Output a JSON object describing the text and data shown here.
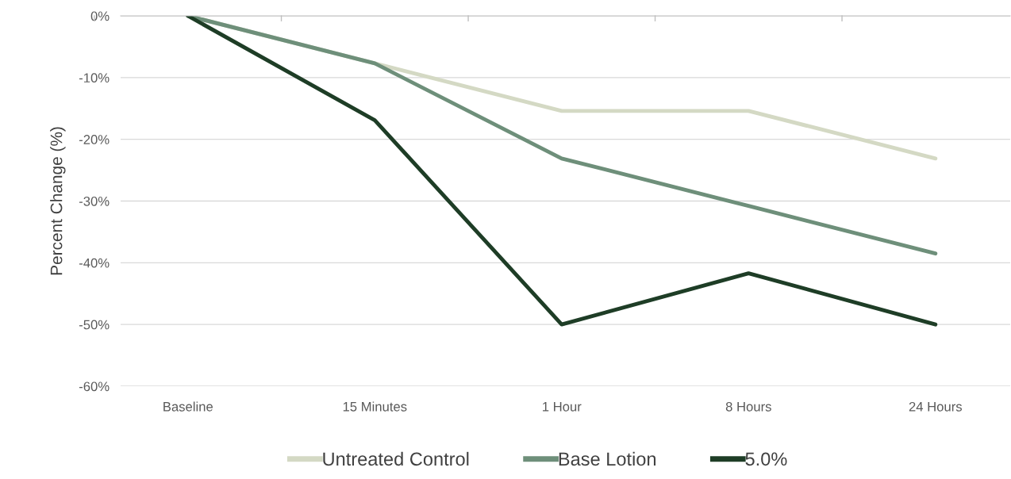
{
  "chart_data": {
    "type": "line",
    "ylabel": "Percent Change (%)",
    "categories": [
      "Baseline",
      "15 Minutes",
      "1 Hour",
      "8 Hours",
      "24 Hours"
    ],
    "series": [
      {
        "name": "Untreated Control",
        "color": "#d4d9c4",
        "values": [
          0,
          -7.7,
          -15.4,
          -15.4,
          -23.1
        ]
      },
      {
        "name": "Base Lotion",
        "color": "#6e8f7a",
        "values": [
          0,
          -7.7,
          -23.1,
          -30.8,
          -38.5
        ]
      },
      {
        "name": "5.0%",
        "color": "#1e3d26",
        "values": [
          0,
          -16.9,
          -50,
          -41.7,
          -50
        ]
      }
    ],
    "ylim": [
      -60,
      0
    ],
    "yticks": [
      {
        "value": -60,
        "label": "-60%"
      },
      {
        "value": -50,
        "label": "-50%"
      },
      {
        "value": -40,
        "label": "-40%"
      },
      {
        "value": -30,
        "label": "-30%"
      },
      {
        "value": -20,
        "label": "-20%"
      },
      {
        "value": -10,
        "label": "-10%"
      },
      {
        "value": 0,
        "label": "0%"
      }
    ],
    "grid": "y",
    "legend": "bottom",
    "marker": "none",
    "line_style": "solid"
  }
}
